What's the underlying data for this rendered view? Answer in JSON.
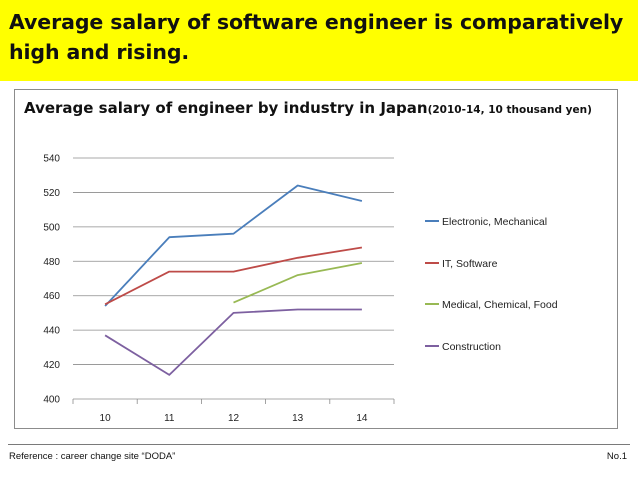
{
  "slide": {
    "title_line1": "Average salary of software engineer is comparatively",
    "title_line2": "high and rising.",
    "banner_color": "#ffff00"
  },
  "chart_data": {
    "type": "line",
    "title": "Average salary of engineer by industry in Japan",
    "subtitle": "(2010-14, 10 thousand yen)",
    "x": [
      "10",
      "11",
      "12",
      "13",
      "14"
    ],
    "ylim": [
      400,
      540
    ],
    "yticks": [
      400,
      420,
      440,
      460,
      480,
      500,
      520,
      540
    ],
    "grid": true,
    "legend_position": "right",
    "series": [
      {
        "name": "Electronic, Mechanical",
        "color": "#4a7ebb",
        "values": [
          454,
          494,
          496,
          524,
          515
        ]
      },
      {
        "name": "IT, Software",
        "color": "#be4b48",
        "values": [
          455,
          474,
          474,
          482,
          488
        ]
      },
      {
        "name": "Medical, Chemical, Food",
        "color": "#98b954",
        "values": [
          null,
          null,
          456,
          472,
          479
        ]
      },
      {
        "name": "Construction",
        "color": "#7d60a0",
        "values": [
          437,
          414,
          450,
          452,
          452
        ]
      }
    ]
  },
  "footer": {
    "reference": "Reference : career change site “DODA”",
    "page": "No.1"
  }
}
